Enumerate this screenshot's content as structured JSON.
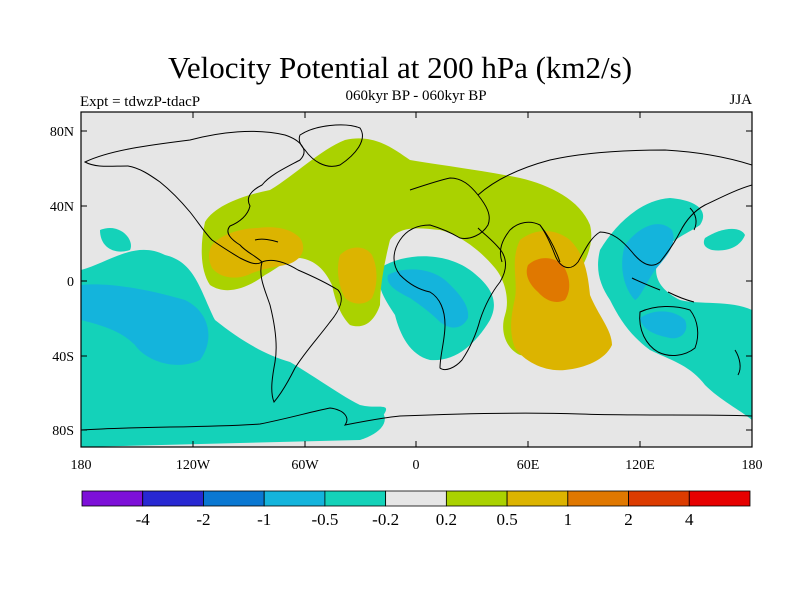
{
  "title": "Velocity Potential at 200 hPa (km2/s)",
  "subtitle_left": "Expt = tdwzP-tdacP",
  "subtitle_center": "060kyr BP - 060kyr BP",
  "subtitle_right": "JJA",
  "axes": {
    "x_ticks": [
      "180",
      "120W",
      "60W",
      "0",
      "60E",
      "120E",
      "180"
    ],
    "y_ticks": [
      "80N",
      "40N",
      "0",
      "40S",
      "80S"
    ]
  },
  "colorbar": {
    "colors": [
      "#7d10d8",
      "#2828d2",
      "#0a78d2",
      "#14b4dc",
      "#14d2b9",
      "#e6e6e6",
      "#aad200",
      "#dcb400",
      "#e07800",
      "#dc3c00",
      "#e60000"
    ],
    "labels": [
      "-4",
      "-2",
      "-1",
      "-0.5",
      "-0.2",
      "0.2",
      "0.5",
      "1",
      "2",
      "4"
    ]
  },
  "map_colors": {
    "background": "#e6e6e6",
    "neg_weak": "#14d2b9",
    "neg_mid": "#14b4dc",
    "pos_weak": "#aad200",
    "pos_mid": "#dcb400",
    "pos_strong": "#e07800"
  }
}
